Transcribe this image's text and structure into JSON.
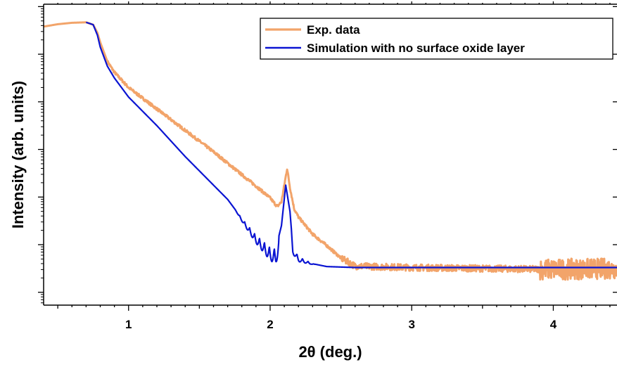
{
  "chart_data": {
    "type": "line",
    "title": "",
    "xlabel": "2θ (deg.)",
    "ylabel": "Intensity (arb. units)",
    "x_ticks": [
      1,
      2,
      3,
      4
    ],
    "xlim": [
      0.4,
      4.45
    ],
    "y_scale": "log",
    "y_decades": [
      0,
      1,
      2,
      3,
      4,
      5,
      6
    ],
    "ylim_log10": [
      -0.27,
      6.05
    ],
    "y_tick_labels_shown": false,
    "grid": false,
    "legend": {
      "position": "top-right",
      "boxed": true
    },
    "series": [
      {
        "name": "Exp. data",
        "color": "#f2a46a",
        "style": "noisy",
        "points": [
          [
            0.4,
            5.58
          ],
          [
            0.5,
            5.63
          ],
          [
            0.6,
            5.66
          ],
          [
            0.7,
            5.67
          ],
          [
            0.75,
            5.62
          ],
          [
            0.78,
            5.45
          ],
          [
            0.8,
            5.25
          ],
          [
            0.85,
            4.85
          ],
          [
            0.9,
            4.62
          ],
          [
            1.0,
            4.3
          ],
          [
            1.2,
            3.85
          ],
          [
            1.4,
            3.4
          ],
          [
            1.6,
            2.95
          ],
          [
            1.8,
            2.47
          ],
          [
            1.9,
            2.23
          ],
          [
            2.0,
            1.98
          ],
          [
            2.05,
            1.8
          ],
          [
            2.08,
            1.9
          ],
          [
            2.1,
            2.25
          ],
          [
            2.12,
            2.6
          ],
          [
            2.14,
            2.2
          ],
          [
            2.17,
            1.75
          ],
          [
            2.2,
            1.58
          ],
          [
            2.3,
            1.22
          ],
          [
            2.4,
            0.98
          ],
          [
            2.5,
            0.72
          ],
          [
            2.6,
            0.55
          ],
          [
            3.0,
            0.52
          ],
          [
            4.0,
            0.48
          ],
          [
            4.45,
            0.5
          ]
        ]
      },
      {
        "name": "Simulation with no surface oxide layer",
        "color": "#0a14d2",
        "style": "smooth",
        "points": [
          [
            0.7,
            5.67
          ],
          [
            0.75,
            5.62
          ],
          [
            0.78,
            5.4
          ],
          [
            0.8,
            5.15
          ],
          [
            0.85,
            4.75
          ],
          [
            0.9,
            4.5
          ],
          [
            1.0,
            4.1
          ],
          [
            1.2,
            3.5
          ],
          [
            1.4,
            2.85
          ],
          [
            1.6,
            2.25
          ],
          [
            1.7,
            1.95
          ],
          [
            1.8,
            1.55
          ],
          [
            1.9,
            1.2
          ],
          [
            2.0,
            0.95
          ],
          [
            2.04,
            0.92
          ],
          [
            2.08,
            1.4
          ],
          [
            2.11,
            2.25
          ],
          [
            2.14,
            1.7
          ],
          [
            2.16,
            0.95
          ],
          [
            2.2,
            0.75
          ],
          [
            2.3,
            0.6
          ],
          [
            2.4,
            0.54
          ],
          [
            2.6,
            0.52
          ],
          [
            3.0,
            0.52
          ],
          [
            4.0,
            0.52
          ],
          [
            4.45,
            0.52
          ]
        ]
      }
    ]
  }
}
